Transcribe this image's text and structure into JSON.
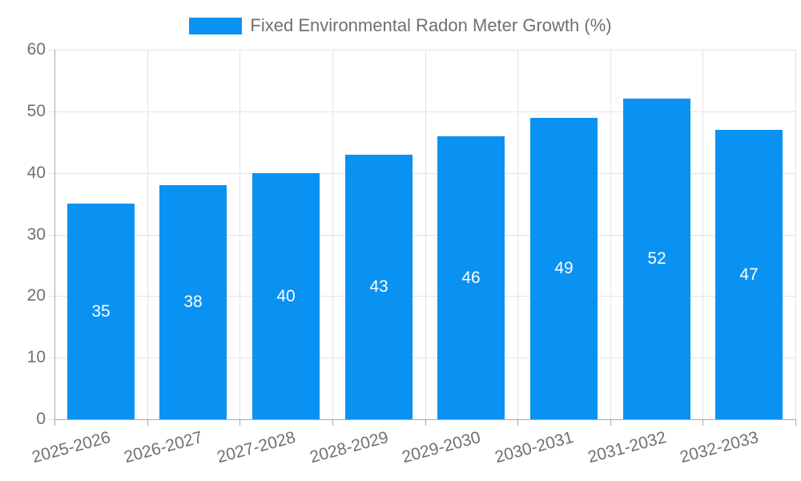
{
  "legend": {
    "label": "Fixed Environmental Radon Meter Growth (%)"
  },
  "chart_data": {
    "type": "bar",
    "title": "Fixed Environmental Radon Meter Growth (%)",
    "categories": [
      "2025-2026",
      "2026-2027",
      "2027-2028",
      "2028-2029",
      "2029-2030",
      "2030-2031",
      "2031-2032",
      "2032-2033"
    ],
    "values": [
      35,
      38,
      40,
      43,
      46,
      49,
      52,
      47
    ],
    "value_labels": [
      "35",
      "38",
      "40",
      "43",
      "46",
      "49",
      "52",
      "47"
    ],
    "xlabel": "",
    "ylabel": "",
    "ylim": [
      0,
      60
    ],
    "yticks": [
      0,
      10,
      20,
      30,
      40,
      50,
      60
    ],
    "ytick_labels": [
      "0",
      "10",
      "20",
      "30",
      "40",
      "50",
      "60"
    ],
    "grid": true,
    "legend_position": "top-center",
    "colors": {
      "bar": "#0a92f2",
      "value_label": "#ffffff",
      "grid": "#e4e4e4",
      "axis": "#a9a9a9",
      "text": "#707070",
      "background": "#ffffff"
    }
  }
}
